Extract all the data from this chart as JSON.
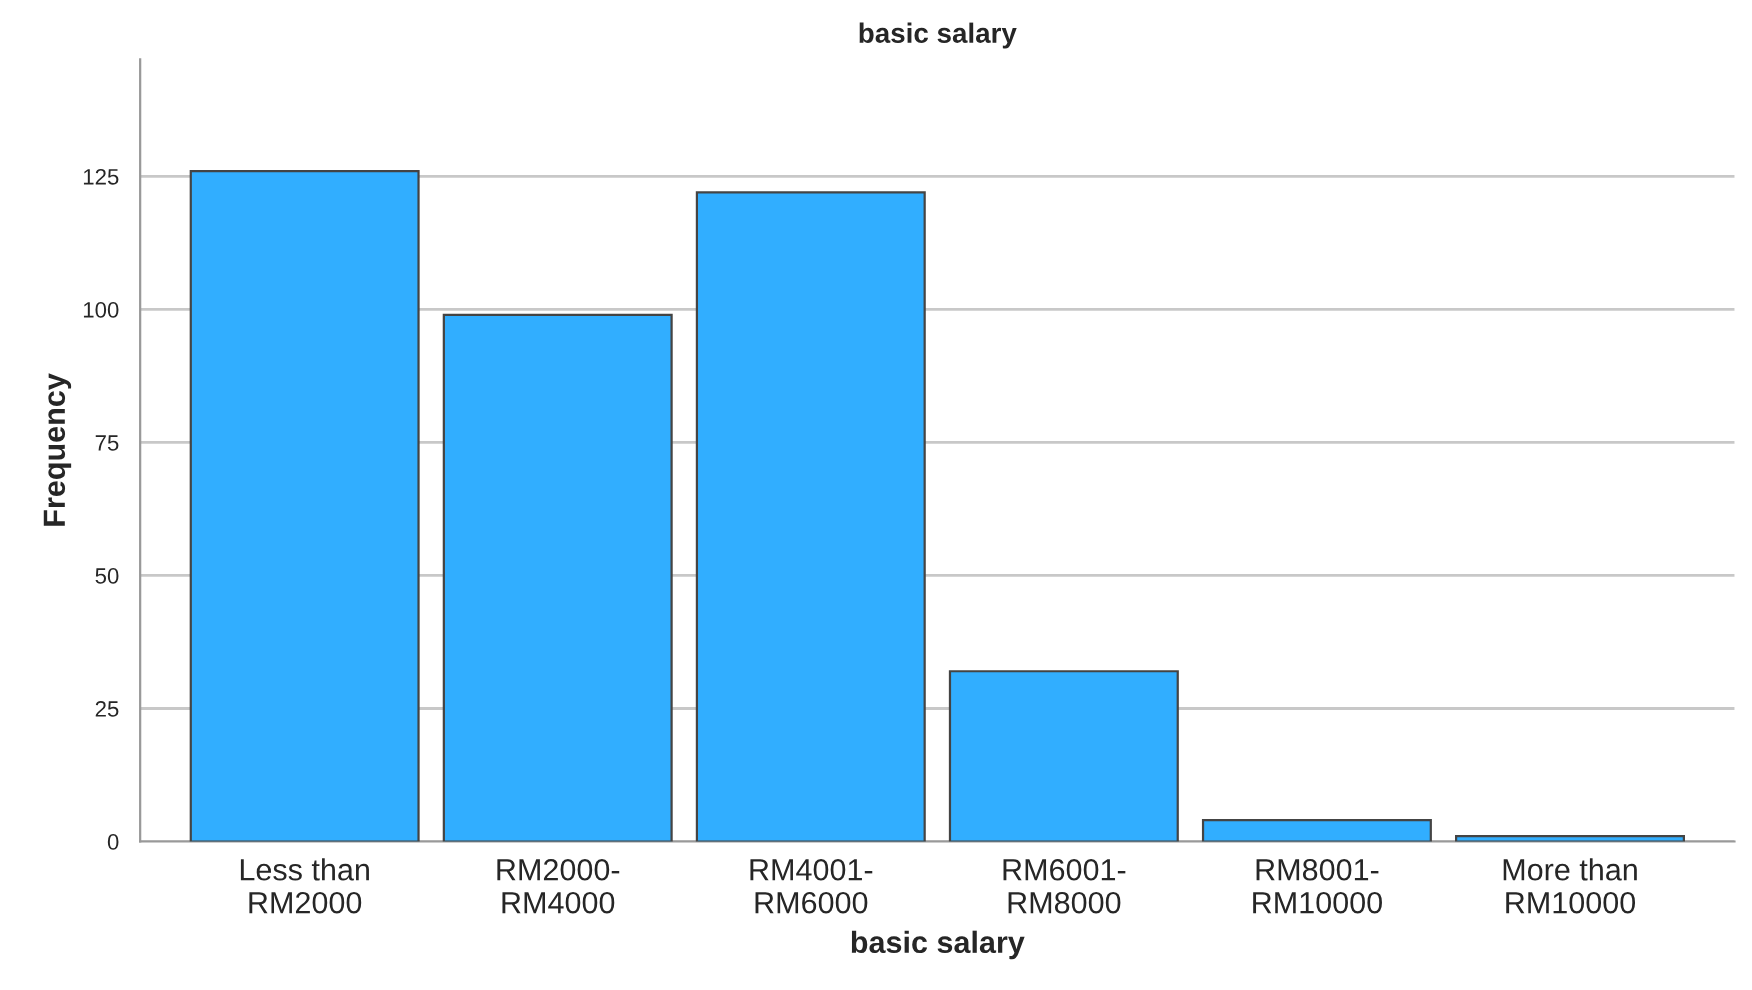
{
  "chart_data": {
    "type": "bar",
    "title": "basic salary",
    "xlabel": "basic salary",
    "ylabel": "Frequency",
    "categories": [
      "Less than\nRM2000",
      "RM2000-\nRM4000",
      "RM4001-\nRM6000",
      "RM6001-\nRM8000",
      "RM8001-\nRM10000",
      "More than\nRM10000"
    ],
    "values": [
      126,
      99,
      122,
      32,
      4,
      1
    ],
    "color": "#31aeff",
    "ylim": [
      0,
      147
    ],
    "yticks": [
      0,
      25,
      50,
      75,
      100,
      125
    ],
    "grid": "y",
    "legend": false
  }
}
